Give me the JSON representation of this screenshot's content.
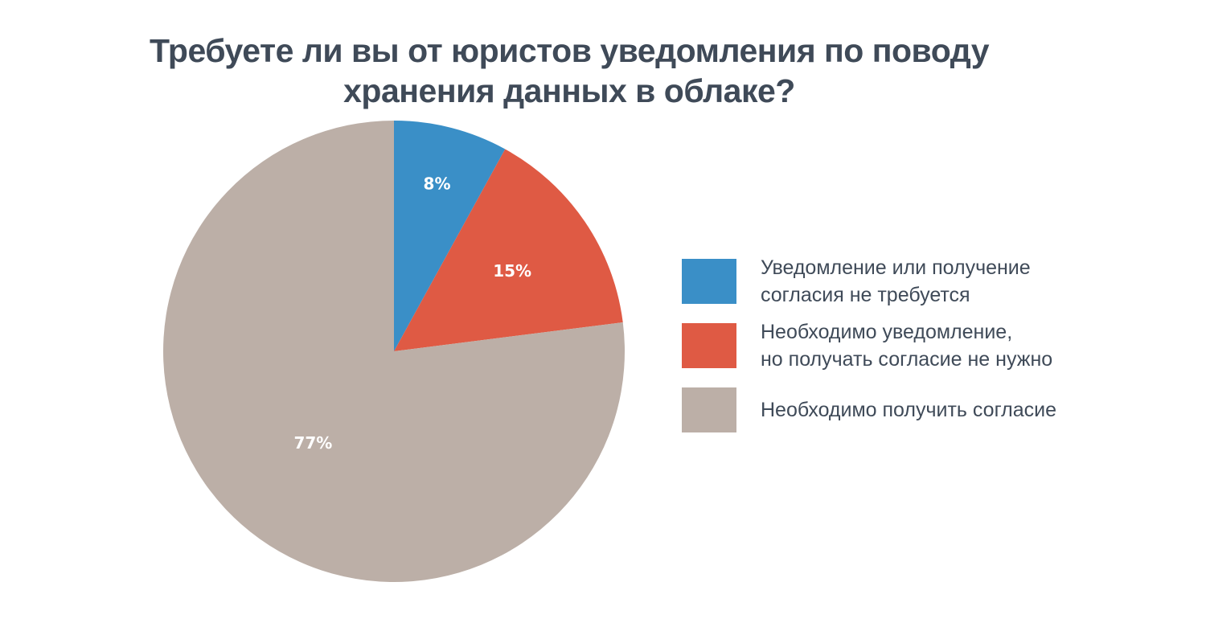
{
  "chart_data": {
    "type": "pie",
    "title": [
      "Требуете ли вы от юристов уведомления по поводу",
      "хранения данных в облаке?"
    ],
    "slices": [
      {
        "label": "Уведомление или получение\nсогласия не требуется",
        "value": 8,
        "data_label": "8%",
        "color": "#3a8fc7"
      },
      {
        "label": "Необходимо уведомление,\nно получать согласие не нужно",
        "value": 15,
        "data_label": "15%",
        "color": "#df5a44"
      },
      {
        "label": "Необходимо получить согласие",
        "value": 77,
        "data_label": "77%",
        "color": "#bcafa7"
      }
    ],
    "legend_position": "right",
    "start_angle": "top, clockwise"
  }
}
